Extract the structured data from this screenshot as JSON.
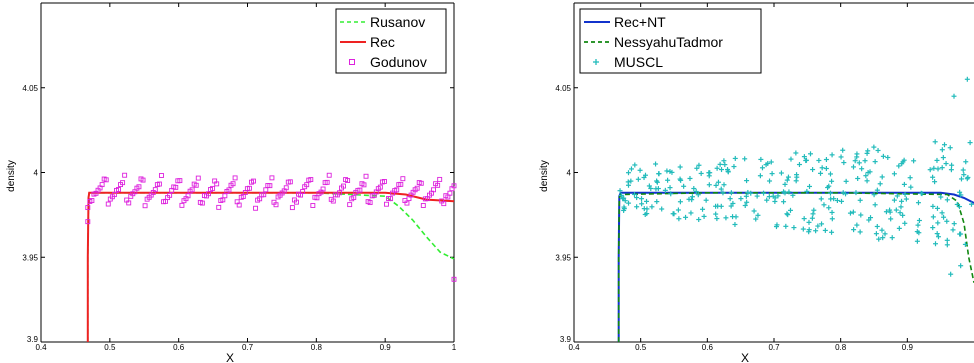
{
  "chart_data": [
    {
      "type": "line",
      "xlabel": "X",
      "ylabel": "density",
      "xlim": [
        0.4,
        1.0
      ],
      "ylim": [
        3.9,
        4.1
      ],
      "xticks": [
        0.4,
        0.5,
        0.6,
        0.7,
        0.8,
        0.9,
        1
      ],
      "xtick_labels": [
        "0.4",
        "0.5",
        "0.6",
        "0.7",
        "0.8",
        "0.9",
        "1"
      ],
      "yticks": [
        3.9,
        3.95,
        4.0,
        4.05
      ],
      "ytick_labels": [
        "3.9",
        "3.95",
        "4",
        "4.05"
      ],
      "grid": false,
      "legend_position": "top-right",
      "series": [
        {
          "name": "Rusanov",
          "style": "dashed",
          "color": "#33ee33",
          "x": [
            0.468,
            0.468,
            0.469,
            0.47,
            0.6,
            0.8,
            0.9,
            0.92,
            0.94,
            0.96,
            0.98,
            1.0
          ],
          "y": [
            3.9,
            3.95,
            3.985,
            3.988,
            3.988,
            3.988,
            3.986,
            3.98,
            3.972,
            3.962,
            3.953,
            3.949
          ]
        },
        {
          "name": "Rec",
          "style": "solid",
          "color": "#ee2222",
          "x": [
            0.468,
            0.468,
            0.469,
            0.47,
            0.6,
            0.8,
            0.9,
            0.93,
            0.96,
            1.0
          ],
          "y": [
            3.9,
            3.95,
            3.985,
            3.988,
            3.988,
            3.988,
            3.988,
            3.987,
            3.984,
            3.983
          ]
        },
        {
          "name": "Godunov",
          "style": "square-markers",
          "color": "#dd22dd",
          "marker_count": 180,
          "x_range": [
            0.468,
            1.0
          ],
          "y_band": [
            3.979,
            3.998
          ],
          "sawtooth_period": 0.027,
          "end_points": [
            [
              0.468,
              3.971
            ],
            [
              1.0,
              3.937
            ]
          ]
        }
      ]
    },
    {
      "type": "line",
      "xlabel": "X",
      "ylabel": "density",
      "xlim": [
        0.4,
        1.0
      ],
      "ylim": [
        3.9,
        4.1
      ],
      "xticks": [
        0.4,
        0.5,
        0.6,
        0.7,
        0.8,
        0.9
      ],
      "xtick_labels": [
        "0.4",
        "0.5",
        "0.6",
        "0.7",
        "0.8",
        "0.9"
      ],
      "yticks": [
        3.9,
        3.95,
        4.0,
        4.05
      ],
      "ytick_labels": [
        "3.9",
        "3.95",
        "4",
        "4.05"
      ],
      "grid": false,
      "legend_position": "top-left",
      "series": [
        {
          "name": "Rec+NT",
          "style": "solid",
          "color": "#1133cc",
          "x": [
            0.467,
            0.467,
            0.468,
            0.47,
            0.6,
            0.8,
            0.95,
            0.97,
            0.985,
            1.0
          ],
          "y": [
            3.9,
            3.95,
            3.986,
            3.988,
            3.988,
            3.988,
            3.988,
            3.987,
            3.985,
            3.982
          ]
        },
        {
          "name": "NessyahuTadmor",
          "style": "dashed",
          "color": "#118811",
          "x": [
            0.467,
            0.467,
            0.468,
            0.47,
            0.6,
            0.8,
            0.96,
            0.975,
            0.985,
            0.992,
            1.0
          ],
          "y": [
            3.9,
            3.95,
            3.985,
            3.987,
            3.988,
            3.988,
            3.987,
            3.983,
            3.97,
            3.95,
            3.935
          ]
        },
        {
          "name": "MUSCL",
          "style": "plus-markers",
          "color": "#22bbbb",
          "marker_count": 320,
          "x_range": [
            0.468,
            1.0
          ],
          "y_band_start": [
            3.976,
            4.004
          ],
          "y_band_end": [
            3.955,
            4.02
          ],
          "outliers": [
            [
              0.99,
              4.055
            ],
            [
              0.97,
              4.045
            ],
            [
              0.98,
              3.945
            ],
            [
              0.965,
              3.94
            ]
          ]
        }
      ]
    }
  ]
}
